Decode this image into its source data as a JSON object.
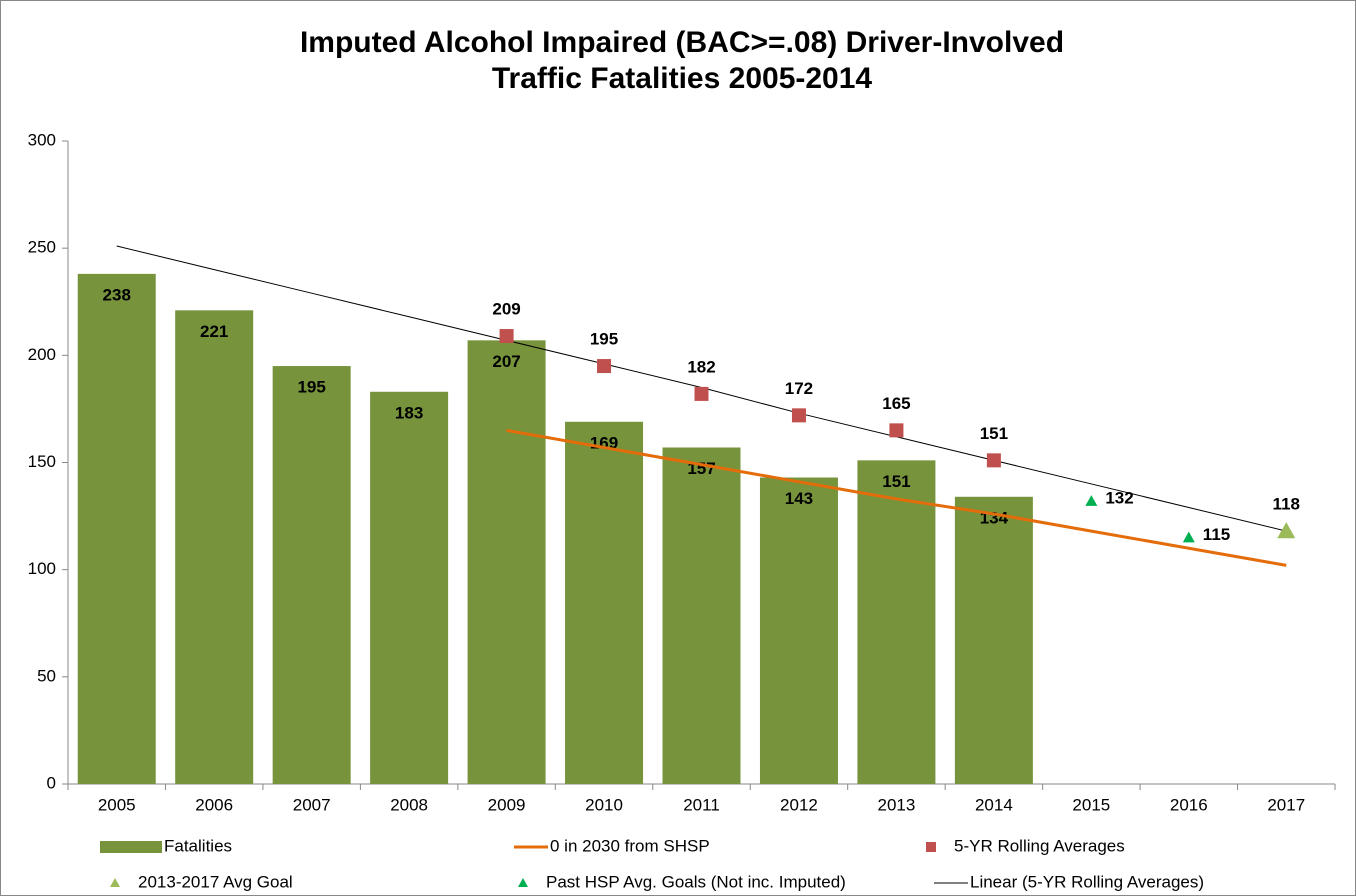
{
  "chart_data": {
    "type": "bar",
    "title": [
      "Imputed Alcohol Impaired (BAC>=.08) Driver-Involved",
      "Traffic Fatalities 2005-2014"
    ],
    "categories": [
      "2005",
      "2006",
      "2007",
      "2008",
      "2009",
      "2010",
      "2011",
      "2012",
      "2013",
      "2014",
      "2015",
      "2016",
      "2017"
    ],
    "ylim": [
      0,
      300
    ],
    "yticks": [
      0,
      50,
      100,
      150,
      200,
      250,
      300
    ],
    "grid": false,
    "series": [
      {
        "name": "Fatalities",
        "type": "bar",
        "color": "#77933c",
        "values": [
          238,
          221,
          195,
          183,
          207,
          169,
          157,
          143,
          151,
          134,
          null,
          null,
          null
        ]
      },
      {
        "name": "0 in 2030 from SHSP",
        "type": "line",
        "color": "#e46c0a",
        "values": [
          null,
          null,
          null,
          null,
          165,
          157,
          149,
          141,
          133,
          126,
          118,
          110,
          102
        ]
      },
      {
        "name": "5-YR Rolling Averages",
        "type": "square",
        "color": "#c0504d",
        "values": [
          null,
          null,
          null,
          null,
          209,
          195,
          182,
          172,
          165,
          151,
          null,
          null,
          null
        ]
      },
      {
        "name": "2013-2017 Avg Goal",
        "type": "triangle",
        "color": "#9bbb59",
        "values": [
          null,
          null,
          null,
          null,
          null,
          null,
          null,
          null,
          null,
          null,
          null,
          null,
          118
        ]
      },
      {
        "name": "Past HSP Avg. Goals (Not inc. Imputed)",
        "type": "triangle",
        "color": "#00b050",
        "values": [
          null,
          null,
          null,
          null,
          null,
          null,
          null,
          null,
          null,
          null,
          132,
          115,
          null
        ]
      },
      {
        "name": "Linear (5-YR Rolling Averages)",
        "type": "thinline",
        "color": "#000000",
        "values": [
          251,
          240,
          229,
          218,
          207,
          196,
          185,
          173,
          162,
          151,
          140,
          129,
          118
        ]
      }
    ]
  }
}
